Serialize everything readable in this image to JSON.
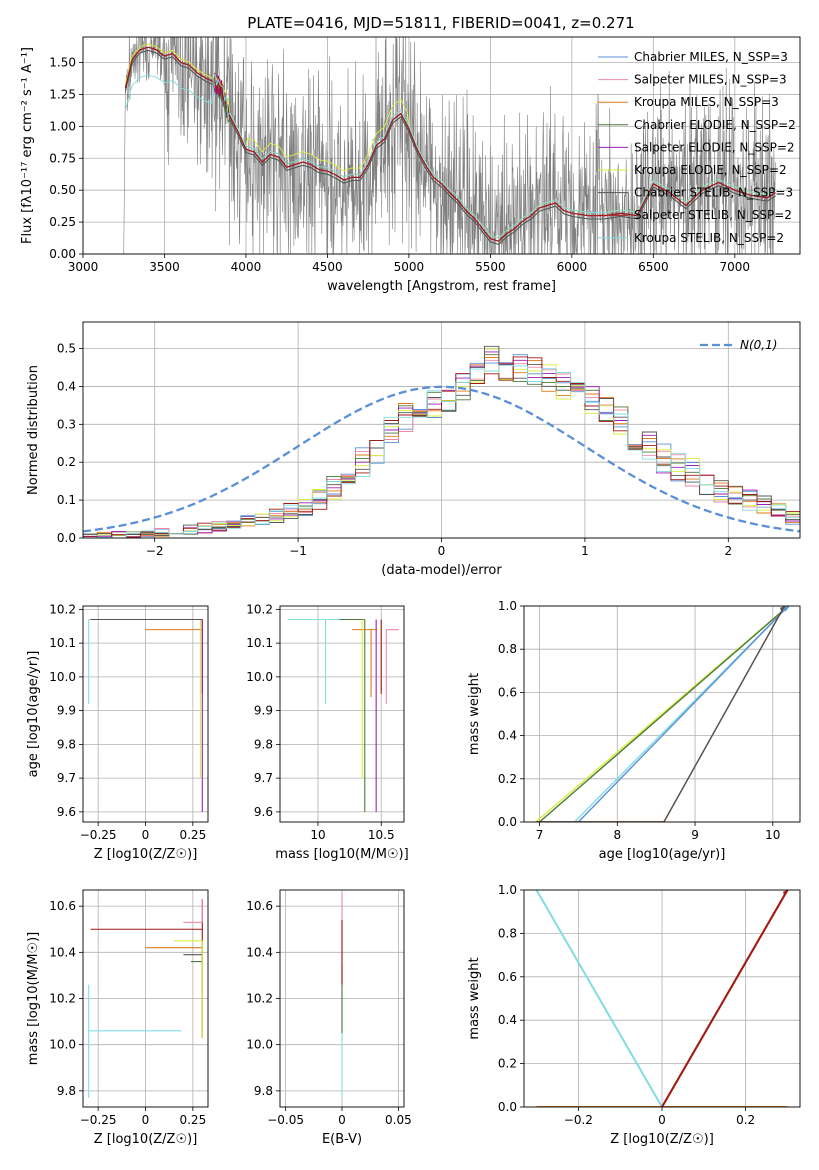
{
  "figure_title": "PLATE=0416, MJD=51811, FIBERID=0041, z=0.271",
  "colors": {
    "Chabrier MILES": "#5b8fd8",
    "Salpeter MILES": "#ef87a8",
    "Kroupa MILES": "#e07a1a",
    "Chabrier ELODIE": "#4a7a3a",
    "Salpeter ELODIE": "#9b1fb8",
    "Kroupa ELODIE": "#d9ef3a",
    "Chabrier STELIB": "#555555",
    "Salpeter STELIB": "#a01818",
    "Kroupa STELIB": "#80dde0",
    "data": "#808080",
    "normal": "#5b8fd8"
  },
  "chart_data": [
    {
      "id": "spectrum",
      "type": "line",
      "xlabel": "wavelength [Angstrom, rest frame]",
      "ylabel": "Flux [fλ10⁻¹⁷ erg cm⁻² s⁻¹ A⁻¹]",
      "xlim": [
        3000,
        7400
      ],
      "ylim": [
        0,
        1.7
      ],
      "xticks": [
        3000,
        3500,
        4000,
        4500,
        5000,
        5500,
        6000,
        6500,
        7000
      ],
      "yticks": [
        0.0,
        0.25,
        0.5,
        0.75,
        1.0,
        1.25,
        1.5
      ],
      "legend_position": "top-right",
      "legend": [
        "Chabrier MILES, N_SSP=3",
        "Salpeter MILES, N_SSP=3",
        "Kroupa MILES, N_SSP=3",
        "Chabrier ELODIE, N_SSP=2",
        "Salpeter ELODIE, N_SSP=2",
        "Kroupa ELODIE, N_SSP=2",
        "Chabrier STELIB, N_SSP=3",
        "Salpeter STELIB, N_SSP=2",
        "Kroupa STELIB, N_SSP=2"
      ],
      "data_range": [
        3260,
        7250
      ],
      "model_envelope": {
        "x": [
          3260,
          3300,
          3350,
          3400,
          3450,
          3500,
          3550,
          3600,
          3650,
          3700,
          3750,
          3800,
          3850,
          3900,
          3950,
          4000,
          4050,
          4100,
          4150,
          4200,
          4250,
          4300,
          4350,
          4400,
          4450,
          4500,
          4550,
          4600,
          4650,
          4700,
          4750,
          4800,
          4850,
          4900,
          4950,
          5000,
          5050,
          5100,
          5150,
          5200,
          5250,
          5300,
          5350,
          5400,
          5450,
          5500,
          5550,
          5600,
          5650,
          5700,
          5750,
          5800,
          5850,
          5900,
          5950,
          6000,
          6100,
          6200,
          6300,
          6400,
          6500,
          6600,
          6700,
          6800,
          6900,
          7000,
          7100,
          7200,
          7250
        ],
        "y": [
          1.3,
          1.52,
          1.6,
          1.62,
          1.6,
          1.55,
          1.57,
          1.5,
          1.48,
          1.42,
          1.38,
          1.35,
          1.3,
          1.08,
          0.96,
          0.82,
          0.8,
          0.72,
          0.78,
          0.76,
          0.68,
          0.7,
          0.72,
          0.7,
          0.66,
          0.65,
          0.62,
          0.58,
          0.6,
          0.6,
          0.7,
          0.85,
          0.9,
          1.05,
          1.1,
          0.98,
          0.82,
          0.7,
          0.6,
          0.55,
          0.48,
          0.42,
          0.34,
          0.28,
          0.2,
          0.12,
          0.1,
          0.16,
          0.2,
          0.26,
          0.3,
          0.36,
          0.38,
          0.4,
          0.34,
          0.32,
          0.3,
          0.3,
          0.32,
          0.3,
          0.55,
          0.48,
          0.38,
          0.5,
          0.56,
          0.5,
          0.46,
          0.44,
          0.48
        ]
      }
    },
    {
      "id": "residuals",
      "type": "histogram",
      "xlabel": "(data-model)/error",
      "ylabel": "Normed distribution",
      "xlim": [
        -2.5,
        2.5
      ],
      "ylim": [
        0,
        0.57
      ],
      "xticks": [
        -2,
        -1,
        0,
        1,
        2
      ],
      "yticks": [
        0.0,
        0.1,
        0.2,
        0.3,
        0.4,
        0.5
      ],
      "legend": [
        "N(0,1)"
      ],
      "legend_position": "top-right",
      "bin_width": 0.1,
      "bin_start": -2.5,
      "base_heights": [
        0.005,
        0.006,
        0.008,
        0.01,
        0.012,
        0.015,
        0.018,
        0.022,
        0.026,
        0.03,
        0.036,
        0.044,
        0.05,
        0.06,
        0.07,
        0.08,
        0.1,
        0.13,
        0.16,
        0.2,
        0.23,
        0.28,
        0.32,
        0.34,
        0.35,
        0.37,
        0.4,
        0.43,
        0.47,
        0.44,
        0.45,
        0.44,
        0.42,
        0.4,
        0.38,
        0.36,
        0.34,
        0.31,
        0.27,
        0.24,
        0.21,
        0.19,
        0.17,
        0.15,
        0.12,
        0.11,
        0.1,
        0.09,
        0.07,
        0.055
      ]
    },
    {
      "id": "age_vs_Z",
      "type": "errorbar",
      "xlabel": "Z [log10(Z/Z☉)]",
      "ylabel": "age  [log10(age/yr)]",
      "xlim": [
        -0.33,
        0.33
      ],
      "ylim": [
        9.57,
        10.21
      ],
      "xticks": [
        -0.25,
        0.0,
        0.25
      ],
      "yticks": [
        9.6,
        9.7,
        9.8,
        9.9,
        10.0,
        10.1,
        10.2
      ],
      "points": [
        {
          "series": "Kroupa STELIB",
          "x": -0.3,
          "y": 10.17,
          "xerr": [
            0.0,
            0.59
          ],
          "yerr": [
            0.25,
            0.0
          ]
        },
        {
          "series": "Salpeter STELIB",
          "x": 0.3,
          "y": 10.17,
          "xerr": [
            0.59,
            0.0
          ],
          "yerr": [
            0.22,
            0.0
          ]
        },
        {
          "series": "Kroupa MILES",
          "x": 0.3,
          "y": 10.14,
          "xerr": [
            0.3,
            0.0
          ],
          "yerr": [
            0.0,
            0.0
          ]
        },
        {
          "series": "Salpeter ELODIE",
          "x": 0.3,
          "y": 10.17,
          "xerr": [
            0.0,
            0.0
          ],
          "yerr": [
            0.57,
            0.0
          ]
        },
        {
          "series": "Kroupa ELODIE",
          "x": 0.29,
          "y": 10.17,
          "xerr": [
            0.0,
            0.0
          ],
          "yerr": [
            0.47,
            0.0
          ]
        },
        {
          "series": "Chabrier STELIB",
          "x": 0.3,
          "y": 10.17,
          "xerr": [
            0.59,
            0.0
          ],
          "yerr": [
            0.0,
            0.0
          ]
        }
      ]
    },
    {
      "id": "age_vs_mass",
      "type": "errorbar",
      "xlabel": "mass [log10(M/M☉)]",
      "ylabel": "",
      "xlim": [
        9.7,
        10.68
      ],
      "ylim": [
        9.57,
        10.21
      ],
      "xticks": [
        10.0,
        10.5
      ],
      "yticks": [
        9.6,
        9.7,
        9.8,
        9.9,
        10.0,
        10.1,
        10.2
      ],
      "points": [
        {
          "series": "Kroupa STELIB",
          "x": 10.06,
          "y": 10.17,
          "xerr": [
            0.3,
            0.3
          ],
          "yerr": [
            0.25,
            0.0
          ]
        },
        {
          "series": "Chabrier ELODIE",
          "x": 10.37,
          "y": 10.17,
          "xerr": [
            0.2,
            0.0
          ],
          "yerr": [
            0.57,
            0.0
          ]
        },
        {
          "series": "Salpeter ELODIE",
          "x": 10.46,
          "y": 10.17,
          "xerr": [
            0.0,
            0.0
          ],
          "yerr": [
            0.57,
            0.0
          ]
        },
        {
          "series": "Kroupa MILES",
          "x": 10.42,
          "y": 10.14,
          "xerr": [
            0.15,
            0.05
          ],
          "yerr": [
            0.2,
            0.0
          ]
        },
        {
          "series": "Salpeter MILES",
          "x": 10.54,
          "y": 10.14,
          "xerr": [
            0.0,
            0.1
          ],
          "yerr": [
            0.22,
            0.0
          ]
        },
        {
          "series": "Salpeter STELIB",
          "x": 10.5,
          "y": 10.17,
          "xerr": [
            0.0,
            0.0
          ],
          "yerr": [
            0.22,
            0.0
          ]
        },
        {
          "series": "Kroupa ELODIE",
          "x": 10.35,
          "y": 10.17,
          "xerr": [
            0.0,
            0.0
          ],
          "yerr": [
            0.47,
            0.0
          ]
        }
      ]
    },
    {
      "id": "cum_age",
      "type": "line",
      "xlabel": "age  [log10(age/yr)]",
      "ylabel": "mass weight",
      "xlim": [
        6.8,
        10.35
      ],
      "ylim": [
        0,
        1.0
      ],
      "xticks": [
        7,
        8,
        9,
        10
      ],
      "yticks": [
        0.0,
        0.2,
        0.4,
        0.6,
        0.8,
        1.0
      ],
      "series": [
        {
          "name": "Kroupa ELODIE",
          "x": [
            6.95,
            10.2
          ],
          "y": [
            0.0,
            1.0
          ]
        },
        {
          "name": "Chabrier ELODIE",
          "x": [
            7.0,
            10.2
          ],
          "y": [
            0.0,
            1.0
          ]
        },
        {
          "name": "Kroupa STELIB",
          "x": [
            7.45,
            10.2
          ],
          "y": [
            0.0,
            1.0
          ]
        },
        {
          "name": "Chabrier MILES",
          "x": [
            7.5,
            10.2
          ],
          "y": [
            0.0,
            1.0
          ]
        },
        {
          "name": "Kroupa MILES",
          "x": [
            6.95,
            8.6,
            10.15
          ],
          "y": [
            0.0,
            0.0,
            1.0
          ]
        },
        {
          "name": "Chabrier STELIB",
          "x": [
            6.95,
            8.6,
            10.15
          ],
          "y": [
            0.0,
            0.0,
            1.0
          ]
        }
      ]
    },
    {
      "id": "mass_vs_Z",
      "type": "errorbar",
      "xlabel": "Z [log10(Z/Z☉)]",
      "ylabel": "mass [log10(M/M☉)]",
      "xlim": [
        -0.33,
        0.33
      ],
      "ylim": [
        9.73,
        10.67
      ],
      "xticks": [
        -0.25,
        0.0,
        0.25
      ],
      "yticks": [
        9.8,
        10.0,
        10.2,
        10.4,
        10.6
      ],
      "points": [
        {
          "series": "Salpeter STELIB",
          "x": 0.3,
          "y": 10.5,
          "xerr": [
            0.59,
            0.0
          ],
          "yerr": [
            0.47,
            0.13
          ]
        },
        {
          "series": "Kroupa STELIB",
          "x": -0.3,
          "y": 10.06,
          "xerr": [
            0.0,
            0.49
          ],
          "yerr": [
            0.29,
            0.2
          ]
        },
        {
          "series": "Kroupa MILES",
          "x": 0.3,
          "y": 10.42,
          "xerr": [
            0.3,
            0.0
          ],
          "yerr": [
            0.0,
            0.0
          ]
        },
        {
          "series": "Salpeter MILES",
          "x": 0.3,
          "y": 10.53,
          "xerr": [
            0.1,
            0.0
          ],
          "yerr": [
            0.0,
            0.1
          ]
        },
        {
          "series": "Chabrier ELODIE",
          "x": 0.3,
          "y": 10.36,
          "xerr": [
            0.06,
            0.0
          ],
          "yerr": [
            0.0,
            0.0
          ]
        },
        {
          "series": "Chabrier STELIB",
          "x": 0.3,
          "y": 10.39,
          "xerr": [
            0.1,
            0.0
          ],
          "yerr": [
            0.0,
            0.0
          ]
        },
        {
          "series": "Kroupa ELODIE",
          "x": 0.3,
          "y": 10.45,
          "xerr": [
            0.15,
            0.0
          ],
          "yerr": [
            0.42,
            0.0
          ]
        }
      ]
    },
    {
      "id": "mass_vs_ebv",
      "type": "errorbar",
      "xlabel": "E(B-V)",
      "ylabel": "",
      "xlim": [
        -0.055,
        0.055
      ],
      "ylim": [
        9.73,
        10.67
      ],
      "xticks": [
        -0.05,
        0.0,
        0.05
      ],
      "yticks": [
        9.8,
        10.0,
        10.2,
        10.4,
        10.6
      ],
      "points": [
        {
          "series": "Salpeter MILES",
          "x": 0.0,
          "y": 10.5,
          "xerr": [
            0.0,
            0.0
          ],
          "yerr": [
            0.24,
            0.16
          ]
        },
        {
          "series": "Kroupa STELIB",
          "x": 0.0,
          "y": 10.06,
          "xerr": [
            0.0,
            0.0
          ],
          "yerr": [
            0.29,
            0.2
          ]
        },
        {
          "series": "Chabrier ELODIE",
          "x": 0.0,
          "y": 10.2,
          "xerr": [
            0.0,
            0.0
          ],
          "yerr": [
            0.15,
            0.15
          ]
        },
        {
          "series": "Salpeter STELIB",
          "x": 0.0,
          "y": 10.4,
          "xerr": [
            0.0,
            0.0
          ],
          "yerr": [
            0.14,
            0.14
          ]
        }
      ]
    },
    {
      "id": "cum_Z",
      "type": "line",
      "xlabel": "Z [log10(Z/Z☉)]",
      "ylabel": "mass weight",
      "xlim": [
        -0.33,
        0.33
      ],
      "ylim": [
        0,
        1.0
      ],
      "xticks": [
        -0.2,
        0.0,
        0.2
      ],
      "yticks": [
        0.0,
        0.2,
        0.4,
        0.6,
        0.8,
        1.0
      ],
      "series": [
        {
          "name": "Kroupa STELIB",
          "x": [
            -0.3,
            0.0
          ],
          "y": [
            1.0,
            0.0
          ]
        },
        {
          "name": "Kroupa MILES",
          "x": [
            -0.3,
            0.3
          ],
          "y": [
            0.0,
            0.0
          ]
        },
        {
          "name": "Kroupa MILES",
          "x": [
            0.0,
            0.3
          ],
          "y": [
            0.0,
            1.0
          ]
        },
        {
          "name": "Salpeter STELIB",
          "x": [
            0.0,
            0.3
          ],
          "y": [
            0.0,
            1.0
          ]
        }
      ]
    }
  ]
}
